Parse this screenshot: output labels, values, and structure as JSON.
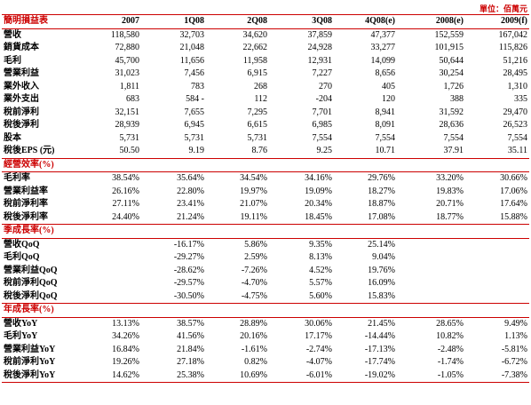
{
  "unit": "單位：佰萬元",
  "header": [
    "簡明損益表",
    "2007",
    "1Q08",
    "2Q08",
    "3Q08",
    "4Q08(e)",
    "2008(e)",
    "2009(f)"
  ],
  "sections": [
    {
      "rows": [
        {
          "label": "營收",
          "values": [
            "118,580",
            "32,703",
            "34,620",
            "37,859",
            "47,377",
            "152,559",
            "167,042"
          ]
        },
        {
          "label": "銷貨成本",
          "values": [
            "72,880",
            "21,048",
            "22,662",
            "24,928",
            "33,277",
            "101,915",
            "115,826"
          ]
        },
        {
          "label": "毛利",
          "values": [
            "45,700",
            "11,656",
            "11,958",
            "12,931",
            "14,099",
            "50,644",
            "51,216"
          ]
        },
        {
          "label": "營業利益",
          "values": [
            "31,023",
            "7,456",
            "6,915",
            "7,227",
            "8,656",
            "30,254",
            "28,495"
          ]
        },
        {
          "label": "業外收入",
          "values": [
            "1,811",
            "783",
            "268",
            "270",
            "405",
            "1,726",
            "1,310"
          ]
        },
        {
          "label": "業外支出",
          "values": [
            "683",
            "584 -",
            "112",
            "-204",
            "120",
            "388",
            "335"
          ]
        },
        {
          "label": "稅前淨利",
          "values": [
            "32,151",
            "7,655",
            "7,295",
            "7,701",
            "8,941",
            "31,592",
            "29,470"
          ]
        },
        {
          "label": "稅後淨利",
          "values": [
            "28,939",
            "6,945",
            "6,615",
            "6,985",
            "8,091",
            "28,636",
            "26,523"
          ]
        },
        {
          "label": "股本",
          "values": [
            "5,731",
            "5,731",
            "5,731",
            "7,554",
            "7,554",
            "7,554",
            "7,554"
          ]
        },
        {
          "label": "稅後EPS (元)",
          "values": [
            "50.50",
            "9.19",
            "8.76",
            "9.25",
            "10.71",
            "37.91",
            "35.11"
          ]
        }
      ]
    },
    {
      "title": "經營效率(%)",
      "rows": [
        {
          "label": "毛利率",
          "values": [
            "38.54%",
            "35.64%",
            "34.54%",
            "34.16%",
            "29.76%",
            "33.20%",
            "30.66%"
          ]
        },
        {
          "label": "營業利益率",
          "values": [
            "26.16%",
            "22.80%",
            "19.97%",
            "19.09%",
            "18.27%",
            "19.83%",
            "17.06%"
          ]
        },
        {
          "label": "稅前淨利率",
          "values": [
            "27.11%",
            "23.41%",
            "21.07%",
            "20.34%",
            "18.87%",
            "20.71%",
            "17.64%"
          ]
        },
        {
          "label": "稅後淨利率",
          "values": [
            "24.40%",
            "21.24%",
            "19.11%",
            "18.45%",
            "17.08%",
            "18.77%",
            "15.88%"
          ]
        }
      ]
    },
    {
      "title": "季成長率(%)",
      "rows": [
        {
          "label": "營收QoQ",
          "values": [
            null,
            "-16.17%",
            "5.86%",
            "9.35%",
            "25.14%",
            null,
            null
          ]
        },
        {
          "label": "毛利QoQ",
          "values": [
            null,
            "-29.27%",
            "2.59%",
            "8.13%",
            "9.04%",
            null,
            null
          ]
        },
        {
          "label": "營業利益QoQ",
          "values": [
            null,
            "-28.62%",
            "-7.26%",
            "4.52%",
            "19.76%",
            null,
            null
          ]
        },
        {
          "label": "稅前淨利QoQ",
          "values": [
            null,
            "-29.57%",
            "-4.70%",
            "5.57%",
            "16.09%",
            null,
            null
          ]
        },
        {
          "label": "稅後淨利QoQ",
          "values": [
            null,
            "-30.50%",
            "-4.75%",
            "5.60%",
            "15.83%",
            null,
            null
          ]
        }
      ]
    },
    {
      "title": "年成長率(%)",
      "rows": [
        {
          "label": "營收YoY",
          "values": [
            "13.13%",
            "38.57%",
            "28.89%",
            "30.06%",
            "21.45%",
            "28.65%",
            "9.49%"
          ]
        },
        {
          "label": "毛利YoY",
          "values": [
            "34.26%",
            "41.56%",
            "20.16%",
            "17.17%",
            "-14.44%",
            "10.82%",
            "1.13%"
          ]
        },
        {
          "label": "營業利益YoY",
          "values": [
            "16.84%",
            "21.84%",
            "-1.61%",
            "-2.74%",
            "-17.13%",
            "-2.48%",
            "-5.81%"
          ]
        },
        {
          "label": "稅前淨利YoY",
          "values": [
            "19.26%",
            "27.18%",
            "0.82%",
            "-4.07%",
            "-17.74%",
            "-1.74%",
            "-6.72%"
          ]
        },
        {
          "label": "稅後淨利YoY",
          "values": [
            "14.62%",
            "25.38%",
            "10.69%",
            "-6.01%",
            "-19.02%",
            "-1.05%",
            "-7.38%"
          ]
        }
      ]
    }
  ]
}
